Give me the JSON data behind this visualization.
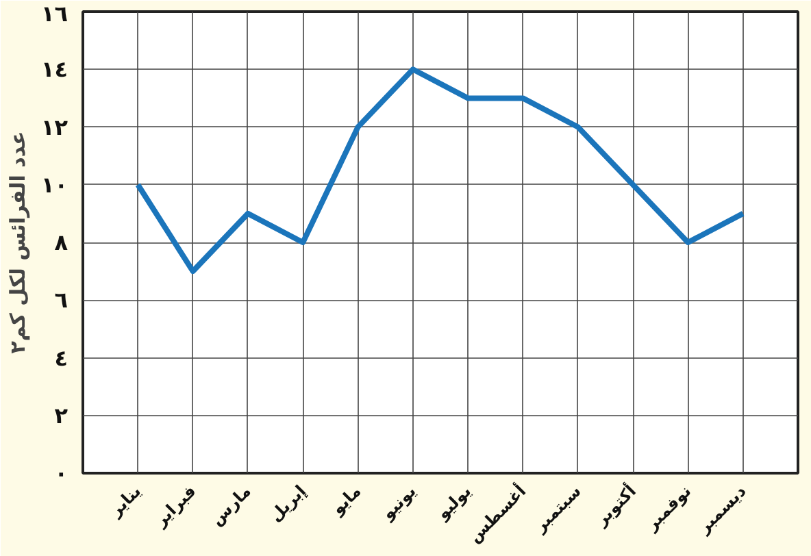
{
  "chart_data": {
    "type": "line",
    "ylabel": "عدد الفرائس لكل كم٢",
    "categories": [
      "يناير",
      "فبراير",
      "مارس",
      "إبريل",
      "مايو",
      "يونيو",
      "يوليو",
      "أغسطس",
      "سبتمبر",
      "أكتوبر",
      "نوفمبر",
      "ديسمبر"
    ],
    "series": [
      {
        "color": "#1b75bb",
        "values": [
          10,
          7,
          9,
          8,
          12,
          14,
          13,
          13,
          12,
          10,
          8,
          9
        ]
      }
    ],
    "ylim": [
      0,
      16
    ],
    "yticks": [
      {
        "value": 0,
        "label": "٠"
      },
      {
        "value": 2,
        "label": "٢"
      },
      {
        "value": 4,
        "label": "٤"
      },
      {
        "value": 6,
        "label": "٦"
      },
      {
        "value": 8,
        "label": "٨"
      },
      {
        "value": 10,
        "label": "١٠"
      },
      {
        "value": 12,
        "label": "١٢"
      },
      {
        "value": 14,
        "label": "١٤"
      },
      {
        "value": 16,
        "label": "١٦"
      }
    ],
    "grid": true,
    "marker": "none",
    "line_style": "solid"
  }
}
